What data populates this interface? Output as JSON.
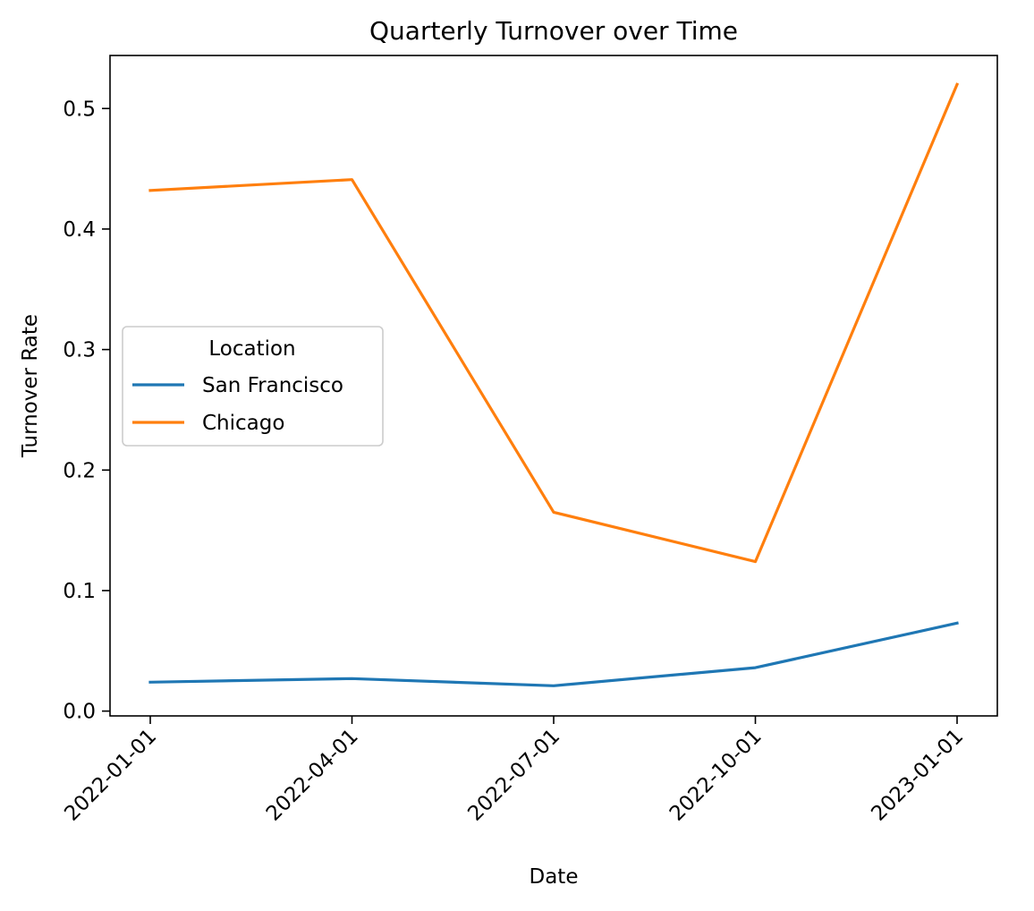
{
  "chart_data": {
    "type": "line",
    "title": "Quarterly Turnover over Time",
    "xlabel": "Date",
    "ylabel": "Turnover Rate",
    "x": [
      "2022-01-01",
      "2022-04-01",
      "2022-07-01",
      "2022-10-01",
      "2023-01-01"
    ],
    "ylim": [
      -0.004,
      0.544
    ],
    "yticks": [
      0.0,
      0.1,
      0.2,
      0.3,
      0.4,
      0.5
    ],
    "ytick_labels": [
      "0.0",
      "0.1",
      "0.2",
      "0.3",
      "0.4",
      "0.5"
    ],
    "grid": false,
    "legend": {
      "title": "Location",
      "placement": "center-left"
    },
    "series": [
      {
        "name": "San Francisco",
        "color": "#1f77b4",
        "values": [
          0.024,
          0.027,
          0.021,
          0.036,
          0.073
        ]
      },
      {
        "name": "Chicago",
        "color": "#ff7f0e",
        "values": [
          0.432,
          0.441,
          0.165,
          0.124,
          0.52
        ]
      }
    ]
  }
}
